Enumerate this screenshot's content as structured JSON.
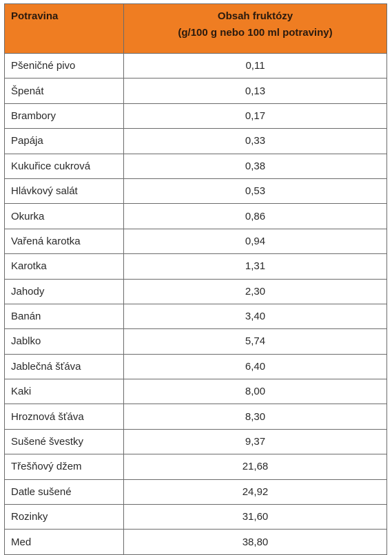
{
  "table": {
    "header": [
      "Potravina",
      [
        "Obsah fruktózy",
        "(g/100 g nebo 100 ml potraviny)"
      ]
    ],
    "rows": [
      [
        "Pšeničné pivo",
        "0,11"
      ],
      [
        "Špenát",
        "0,13"
      ],
      [
        "Brambory",
        "0,17"
      ],
      [
        "Papája",
        "0,33"
      ],
      [
        "Kukuřice cukrová",
        "0,38"
      ],
      [
        "Hlávkový salát",
        "0,53"
      ],
      [
        "Okurka",
        "0,86"
      ],
      [
        "Vařená karotka",
        "0,94"
      ],
      [
        "Karotka",
        "1,31"
      ],
      [
        "Jahody",
        "2,30"
      ],
      [
        "Banán",
        "3,40"
      ],
      [
        "Jablko",
        "5,74"
      ],
      [
        "Jablečná šťáva",
        "6,40"
      ],
      [
        "Kaki",
        "8,00"
      ],
      [
        "Hroznová šťáva",
        "8,30"
      ],
      [
        "Sušené švestky",
        "9,37"
      ],
      [
        "Třešňový džem",
        "21,68"
      ],
      [
        "Datle sušené",
        "24,92"
      ],
      [
        "Rozinky",
        "31,60"
      ],
      [
        "Med",
        "38,80"
      ]
    ]
  }
}
